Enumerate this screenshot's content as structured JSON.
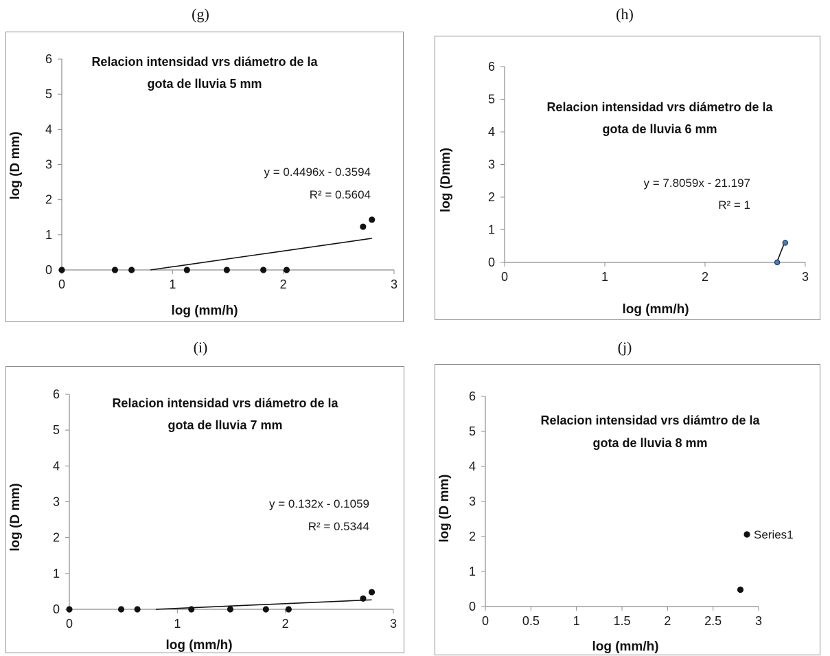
{
  "captions": [
    "(g)",
    "(h)",
    "(i)",
    "(j)"
  ],
  "chart_data": [
    {
      "type": "scatter",
      "title_line1": "Relacion intensidad vrs diámetro de la",
      "title_line2": "gota de lluvia 5 mm",
      "xlabel": "log (mm/h)",
      "ylabel": "log (D mm)",
      "xlim": [
        0,
        3
      ],
      "ylim": [
        0,
        6
      ],
      "xticks": [
        "0",
        "1",
        "2",
        "3"
      ],
      "yticks": [
        "0",
        "1",
        "2",
        "3",
        "4",
        "5",
        "6"
      ],
      "series": [
        {
          "points": [
            [
              0,
              0
            ],
            [
              0.48,
              0
            ],
            [
              0.63,
              0
            ],
            [
              1.13,
              0
            ],
            [
              1.49,
              0
            ],
            [
              1.82,
              0
            ],
            [
              2.03,
              0
            ],
            [
              2.72,
              1.23
            ],
            [
              2.8,
              1.43
            ]
          ],
          "marker_color": "#111111"
        }
      ],
      "trendline": {
        "x_from": 0.8,
        "x_to": 2.8,
        "slope": 0.4496,
        "intercept": -0.3594
      },
      "equation": "y = 0.4496x - 0.3594",
      "r2": "R² = 0.5604",
      "grid": false
    },
    {
      "type": "scatter",
      "title_line1": "Relacion intensidad vrs diámetro de la",
      "title_line2": "gota de lluvia 6 mm",
      "xlabel": "log (mm/h)",
      "ylabel": "log (Dmm)",
      "xlim": [
        0,
        3
      ],
      "ylim": [
        0,
        6
      ],
      "xticks": [
        "0",
        "1",
        "2",
        "3"
      ],
      "yticks": [
        "0",
        "1",
        "2",
        "3",
        "4",
        "5",
        "6"
      ],
      "series": [
        {
          "points": [
            [
              2.72,
              0
            ],
            [
              2.8,
              0.6
            ]
          ],
          "marker_color": "#4a7ebb"
        }
      ],
      "trendline": {
        "x_from": 2.72,
        "x_to": 2.8,
        "slope": 7.8059,
        "intercept": -21.197
      },
      "equation": "y = 7.8059x - 21.197",
      "r2": "R² = 1",
      "grid": false
    },
    {
      "type": "scatter",
      "title_line1": "Relacion intensidad vrs diámetro de la",
      "title_line2": "gota de lluvia 7 mm",
      "xlabel": "log (mm/h)",
      "ylabel": "log (D mm)",
      "xlim": [
        0,
        3
      ],
      "ylim": [
        0,
        6
      ],
      "xticks": [
        "0",
        "1",
        "2",
        "3"
      ],
      "yticks": [
        "0",
        "1",
        "2",
        "3",
        "4",
        "5",
        "6"
      ],
      "series": [
        {
          "points": [
            [
              0,
              0
            ],
            [
              0.48,
              0
            ],
            [
              0.63,
              0
            ],
            [
              1.13,
              0
            ],
            [
              1.49,
              0
            ],
            [
              1.82,
              0
            ],
            [
              2.03,
              0
            ],
            [
              2.72,
              0.3
            ],
            [
              2.8,
              0.48
            ]
          ],
          "marker_color": "#111111"
        }
      ],
      "trendline": {
        "x_from": 0.8,
        "x_to": 2.8,
        "slope": 0.132,
        "intercept": -0.1059
      },
      "equation": "y = 0.132x - 0.1059",
      "r2": "R² = 0.5344",
      "grid": false
    },
    {
      "type": "scatter",
      "title_line1": "Relacion intensidad vrs diámtro de la",
      "title_line2": "gota de lluvia 8 mm",
      "xlabel": "log (mm/h)",
      "ylabel": "log (D mm)",
      "xlim": [
        0,
        3
      ],
      "ylim": [
        0,
        6
      ],
      "xticks": [
        "0",
        "0.5",
        "1",
        "1.5",
        "2",
        "2.5",
        "3"
      ],
      "yticks": [
        "0",
        "1",
        "2",
        "3",
        "4",
        "5",
        "6"
      ],
      "series": [
        {
          "points": [
            [
              2.8,
              0.48
            ]
          ],
          "marker_color": "#111111"
        }
      ],
      "legend_entries": [
        "Series1"
      ],
      "grid": false
    }
  ]
}
